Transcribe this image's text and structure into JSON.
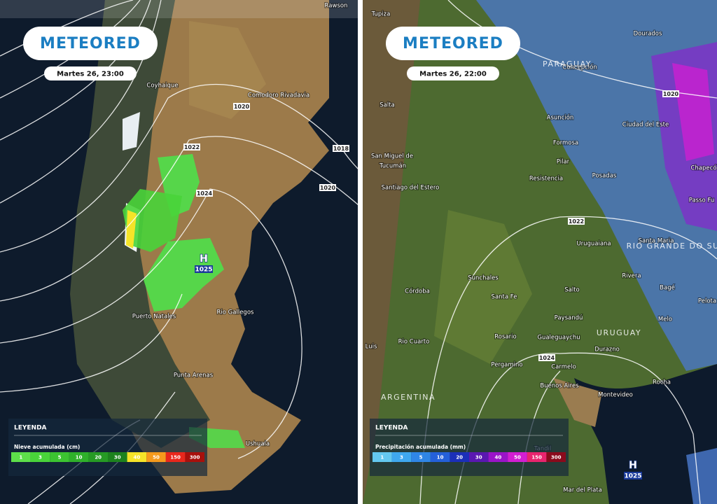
{
  "panels": [
    {
      "logo": "METEORED",
      "time": "Martes 26, 23:00",
      "places": [
        "Rawson",
        "Coyhaique",
        "Comodoro Rivadavia",
        "Puerto Natales",
        "Rio Gallegos",
        "Punta Arenas",
        "Ushuaia"
      ],
      "isobars": [
        "1018",
        "1020",
        "1020",
        "1022",
        "1024"
      ],
      "high": {
        "letter": "H",
        "pressure": "1025"
      },
      "legend": {
        "title": "LEYENDA",
        "subtitle": "Nieve acumulada (cm)",
        "scale": [
          "1",
          "3",
          "5",
          "10",
          "20",
          "30",
          "40",
          "50",
          "150",
          "300"
        ],
        "colors": [
          "#5de04a",
          "#49d43a",
          "#3cc431",
          "#2fb02a",
          "#269a24",
          "#1d821e",
          "#f5e428",
          "#f59a1c",
          "#e8271c",
          "#a8100c"
        ]
      }
    },
    {
      "logo": "METEORED",
      "time": "Martes 26, 22:00",
      "places": [
        "Tupiza",
        "Salta",
        "San Miguel de",
        "Tucumán",
        "Santiago del Estero",
        "Córdoba",
        "Sunchales",
        "Santa Fe",
        "Rosario",
        "Rio Cuarto",
        "Pergamino",
        "Luis",
        "Concepción",
        "Dourados",
        "Asunción",
        "Formosa",
        "Pilar",
        "Resistencia",
        "Ciudad del Este",
        "Posadas",
        "Chapecó",
        "Passo Fu",
        "Santa Maria",
        "Uruguaiana",
        "Rivera",
        "Bagé",
        "Salto",
        "Paysandú",
        "Melo",
        "Pelota",
        "Gualeguaychu",
        "Durazno",
        "Carmelo",
        "Buenos Aires",
        "Montevideo",
        "Rocha",
        "Tandil",
        "Mar del Plata"
      ],
      "regions": [
        "ARGENTINA",
        "PARAGUAY",
        "RIO GRANDE DO SUL",
        "URUGUAY"
      ],
      "isobars": [
        "1020",
        "1022",
        "1024"
      ],
      "high": {
        "letter": "H",
        "pressure": "1025"
      },
      "legend": {
        "title": "LEYENDA",
        "subtitle": "Precipitación acumulada (mm)",
        "scale": [
          "1",
          "3",
          "5",
          "10",
          "20",
          "30",
          "40",
          "50",
          "150",
          "300"
        ],
        "colors": [
          "#64c8f0",
          "#3fa8ee",
          "#2f86e6",
          "#2460d8",
          "#1b2fb8",
          "#5a18b0",
          "#9a14c8",
          "#d21ed2",
          "#e8246e",
          "#8a0a1c"
        ]
      }
    }
  ]
}
